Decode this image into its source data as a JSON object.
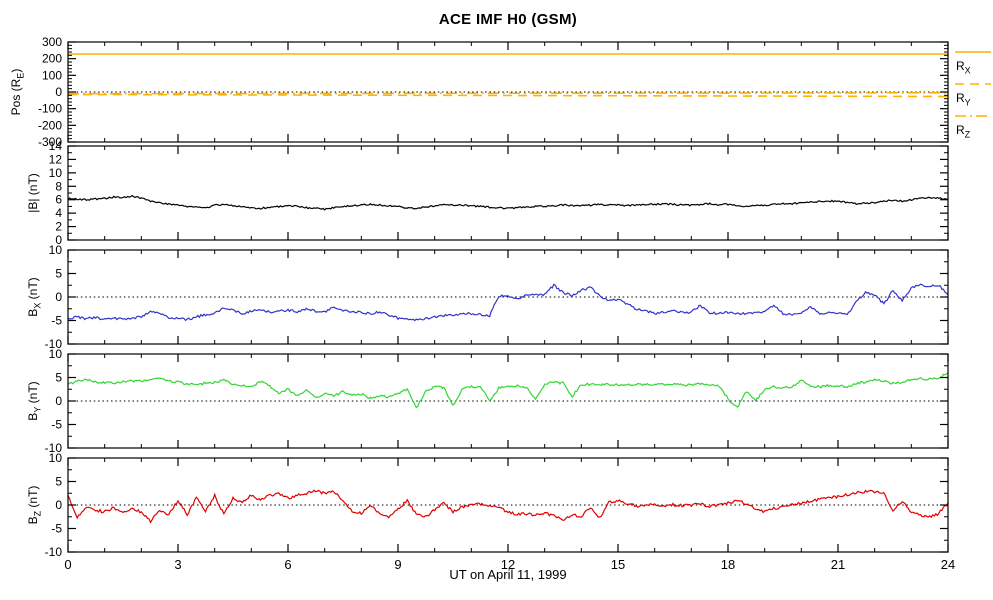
{
  "title": "ACE IMF H0 (GSM)",
  "colors": {
    "black": "#000000",
    "blue": "#3333CC",
    "green": "#33D633",
    "red": "#E00000",
    "orange": "#FFB200",
    "frame": "#000000",
    "background": "#FFFFFF"
  },
  "x_axis": {
    "label": "UT on April 11, 1999",
    "range": [
      0,
      24
    ],
    "ticks": [
      0,
      3,
      6,
      9,
      12,
      15,
      18,
      21,
      24
    ],
    "minor_step": 1
  },
  "legend": {
    "items": [
      {
        "main": "R",
        "sub": "X",
        "style": "solid"
      },
      {
        "main": "R",
        "sub": "Y",
        "style": "dashed"
      },
      {
        "main": "R",
        "sub": "Z",
        "style": "dashdot"
      }
    ]
  },
  "chart_data": [
    {
      "type": "line",
      "panel": "position",
      "ylabel": {
        "pre": "Pos (R",
        "sub": "E",
        "post": ")"
      },
      "ylim": [
        -300,
        300
      ],
      "yticks": [
        -300,
        -200,
        -100,
        0,
        100,
        200,
        300
      ],
      "yminor_step": 20,
      "zero_line": true,
      "series": [
        {
          "name": "R_X",
          "color": "orange",
          "style": "solid",
          "x": [
            0,
            24
          ],
          "values": [
            228,
            228
          ]
        },
        {
          "name": "R_Y",
          "color": "orange",
          "style": "dashed",
          "x": [
            0,
            24
          ],
          "values": [
            -15,
            -27
          ]
        },
        {
          "name": "R_Z",
          "color": "orange",
          "style": "dashdot",
          "x": [
            0,
            24
          ],
          "values": [
            -10,
            -5
          ]
        }
      ]
    },
    {
      "type": "line",
      "panel": "btotal",
      "ylabel": {
        "pre": "|B| (nT)",
        "sub": "",
        "post": ""
      },
      "ylim": [
        0,
        14
      ],
      "yticks": [
        0,
        2,
        4,
        6,
        8,
        10,
        12,
        14
      ],
      "yminor_step": 1,
      "zero_line": false,
      "series": [
        {
          "name": "|B|",
          "color": "black",
          "style": "solid",
          "dt": 0.25,
          "noise": 0.12,
          "values": [
            6.2,
            6.1,
            6.0,
            6.1,
            6.2,
            6.4,
            6.3,
            6.5,
            6.2,
            5.8,
            5.5,
            5.3,
            5.2,
            5.0,
            4.9,
            4.8,
            5.2,
            5.3,
            5.1,
            5.0,
            4.8,
            4.7,
            4.9,
            5.0,
            5.2,
            5.0,
            4.8,
            4.7,
            4.6,
            4.8,
            5.0,
            5.1,
            5.2,
            5.3,
            5.2,
            5.1,
            5.0,
            4.8,
            4.7,
            4.9,
            5.1,
            5.3,
            5.2,
            5.2,
            5.1,
            5.0,
            4.9,
            4.8,
            4.7,
            4.8,
            4.9,
            5.0,
            5.0,
            5.1,
            5.2,
            5.1,
            5.1,
            5.2,
            5.3,
            5.2,
            5.2,
            5.1,
            5.2,
            5.3,
            5.3,
            5.4,
            5.3,
            5.2,
            5.2,
            5.3,
            5.4,
            5.3,
            5.3,
            5.1,
            5.0,
            5.2,
            5.2,
            5.3,
            5.4,
            5.4,
            5.5,
            5.6,
            5.7,
            5.8,
            5.8,
            5.6,
            5.4,
            5.5,
            5.6,
            5.8,
            5.9,
            5.8,
            6.0,
            6.2,
            6.3,
            6.2,
            6.1
          ]
        }
      ]
    },
    {
      "type": "line",
      "panel": "bx",
      "ylabel": {
        "pre": "B",
        "sub": "X",
        "post": " (nT)"
      },
      "ylim": [
        -10,
        10
      ],
      "yticks": [
        -10,
        -5,
        0,
        5,
        10
      ],
      "yminor_step": 2.5,
      "zero_line": true,
      "series": [
        {
          "name": "B_X",
          "color": "blue",
          "style": "solid",
          "dt": 0.25,
          "noise": 0.25,
          "values": [
            -4.5,
            -4.3,
            -4.6,
            -4.4,
            -4.7,
            -4.5,
            -4.8,
            -4.6,
            -4.2,
            -3.2,
            -3.5,
            -4.3,
            -4.6,
            -4.8,
            -4.2,
            -3.8,
            -3.5,
            -2.2,
            -2.8,
            -3.6,
            -3.0,
            -2.6,
            -3.2,
            -3.0,
            -2.8,
            -3.1,
            -2.6,
            -3.0,
            -3.2,
            -2.2,
            -2.8,
            -3.1,
            -3.3,
            -3.6,
            -3.2,
            -3.8,
            -4.5,
            -4.7,
            -4.8,
            -4.6,
            -4.2,
            -4.0,
            -3.8,
            -3.6,
            -3.5,
            -3.8,
            -4.0,
            0.3,
            0.0,
            -0.5,
            0.3,
            0.5,
            0.5,
            2.5,
            1.0,
            0.2,
            1.5,
            2.0,
            0.3,
            -0.8,
            -0.5,
            -1.5,
            -2.5,
            -3.0,
            -3.5,
            -3.2,
            -3.0,
            -3.3,
            -3.2,
            -1.8,
            -3.4,
            -3.5,
            -3.3,
            -3.5,
            -3.6,
            -3.4,
            -3.2,
            -1.8,
            -3.5,
            -3.8,
            -3.5,
            -2.0,
            -3.6,
            -3.4,
            -3.5,
            -3.8,
            -1.0,
            1.0,
            0.5,
            -1.5,
            1.5,
            -0.8,
            2.0,
            2.6,
            2.3,
            2.5,
            0.5
          ]
        }
      ]
    },
    {
      "type": "line",
      "panel": "by",
      "ylabel": {
        "pre": "B",
        "sub": "Y",
        "post": " (nT)"
      },
      "ylim": [
        -10,
        10
      ],
      "yticks": [
        -10,
        -5,
        0,
        5,
        10
      ],
      "yminor_step": 2.5,
      "zero_line": true,
      "series": [
        {
          "name": "B_Y",
          "color": "green",
          "style": "solid",
          "dt": 0.25,
          "noise": 0.25,
          "values": [
            3.5,
            4.2,
            4.5,
            4.0,
            4.0,
            3.8,
            4.2,
            4.3,
            4.2,
            4.5,
            4.8,
            4.2,
            4.0,
            3.6,
            3.5,
            3.8,
            4.0,
            4.5,
            3.5,
            3.2,
            3.0,
            4.2,
            3.2,
            1.5,
            2.5,
            1.0,
            2.5,
            0.8,
            1.5,
            1.0,
            2.0,
            1.2,
            1.5,
            0.6,
            1.2,
            0.8,
            1.5,
            2.5,
            -1.5,
            2.0,
            3.0,
            2.8,
            -1.0,
            2.5,
            3.0,
            3.2,
            0.0,
            2.8,
            3.0,
            3.2,
            2.8,
            0.5,
            3.5,
            4.0,
            3.8,
            1.0,
            3.5,
            3.6,
            3.4,
            3.5,
            3.5,
            3.4,
            3.6,
            3.5,
            3.4,
            3.5,
            3.6,
            3.4,
            3.5,
            3.6,
            3.4,
            3.2,
            0.5,
            -1.5,
            2.0,
            0.0,
            2.5,
            3.0,
            2.8,
            3.0,
            4.5,
            3.2,
            3.0,
            3.3,
            3.2,
            3.0,
            3.8,
            4.0,
            4.5,
            4.2,
            3.8,
            4.0,
            4.5,
            4.8,
            4.6,
            5.0,
            6.0
          ]
        }
      ]
    },
    {
      "type": "line",
      "panel": "bz",
      "ylabel": {
        "pre": "B",
        "sub": "Z",
        "post": " (nT)"
      },
      "ylim": [
        -10,
        10
      ],
      "yticks": [
        -10,
        -5,
        0,
        5,
        10
      ],
      "yminor_step": 2.5,
      "zero_line": true,
      "series": [
        {
          "name": "B_Z",
          "color": "red",
          "style": "solid",
          "dt": 0.25,
          "noise": 0.3,
          "values": [
            2.0,
            -2.8,
            -0.5,
            -1.0,
            -1.5,
            -0.5,
            -1.8,
            -0.8,
            -1.5,
            -3.5,
            -1.0,
            -2.0,
            1.0,
            -2.0,
            1.5,
            -1.5,
            2.0,
            -2.0,
            1.5,
            0.5,
            2.2,
            1.0,
            2.0,
            2.5,
            1.5,
            2.0,
            2.5,
            3.0,
            2.5,
            2.8,
            1.0,
            -1.5,
            -1.8,
            0.0,
            -2.0,
            -2.5,
            -1.0,
            1.0,
            -2.0,
            -2.5,
            -1.0,
            0.5,
            -1.5,
            -0.5,
            0.0,
            0.3,
            -0.2,
            -0.5,
            -1.5,
            -2.0,
            -1.8,
            -2.2,
            -1.8,
            -2.2,
            -3.3,
            -2.0,
            -2.5,
            -0.5,
            -2.8,
            0.5,
            1.0,
            0.3,
            -0.3,
            0.0,
            0.0,
            -0.2,
            0.1,
            -0.1,
            0.0,
            0.2,
            -0.3,
            0.0,
            0.5,
            1.0,
            0.3,
            -0.8,
            -1.5,
            -0.8,
            -0.3,
            0.0,
            0.3,
            0.8,
            1.2,
            1.5,
            1.8,
            2.2,
            2.6,
            2.8,
            2.9,
            2.5,
            -1.2,
            0.8,
            -1.5,
            -2.2,
            -2.6,
            -1.8,
            0.5
          ]
        }
      ]
    }
  ]
}
